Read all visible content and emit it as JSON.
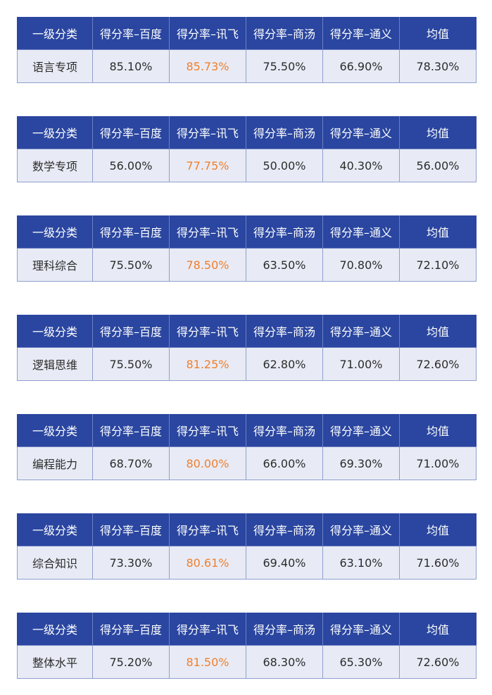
{
  "colors": {
    "header_bg": "#2a46a0",
    "header_text": "#ffffff",
    "row_bg": "#e8ebf5",
    "highlight_text": "#f07f2c"
  },
  "header": [
    "一级分类",
    "得分率–百度",
    "得分率–讯飞",
    "得分率–商汤",
    "得分率–通义",
    "均值"
  ],
  "tables": [
    {
      "category": "语言专项",
      "baidu": "85.10%",
      "xunfei": "85.73%",
      "shangtang": "75.50%",
      "tongyi": "66.90%",
      "avg": "78.30%"
    },
    {
      "category": "数学专项",
      "baidu": "56.00%",
      "xunfei": "77.75%",
      "shangtang": "50.00%",
      "tongyi": "40.30%",
      "avg": "56.00%"
    },
    {
      "category": "理科综合",
      "baidu": "75.50%",
      "xunfei": "78.50%",
      "shangtang": "63.50%",
      "tongyi": "70.80%",
      "avg": "72.10%"
    },
    {
      "category": "逻辑思维",
      "baidu": "75.50%",
      "xunfei": "81.25%",
      "shangtang": "62.80%",
      "tongyi": "71.00%",
      "avg": "72.60%"
    },
    {
      "category": "编程能力",
      "baidu": "68.70%",
      "xunfei": "80.00%",
      "shangtang": "66.00%",
      "tongyi": "69.30%",
      "avg": "71.00%"
    },
    {
      "category": "综合知识",
      "baidu": "73.30%",
      "xunfei": "80.61%",
      "shangtang": "69.40%",
      "tongyi": "63.10%",
      "avg": "71.60%"
    },
    {
      "category": "整体水平",
      "baidu": "75.20%",
      "xunfei": "81.50%",
      "shangtang": "68.30%",
      "tongyi": "65.30%",
      "avg": "72.60%"
    }
  ]
}
